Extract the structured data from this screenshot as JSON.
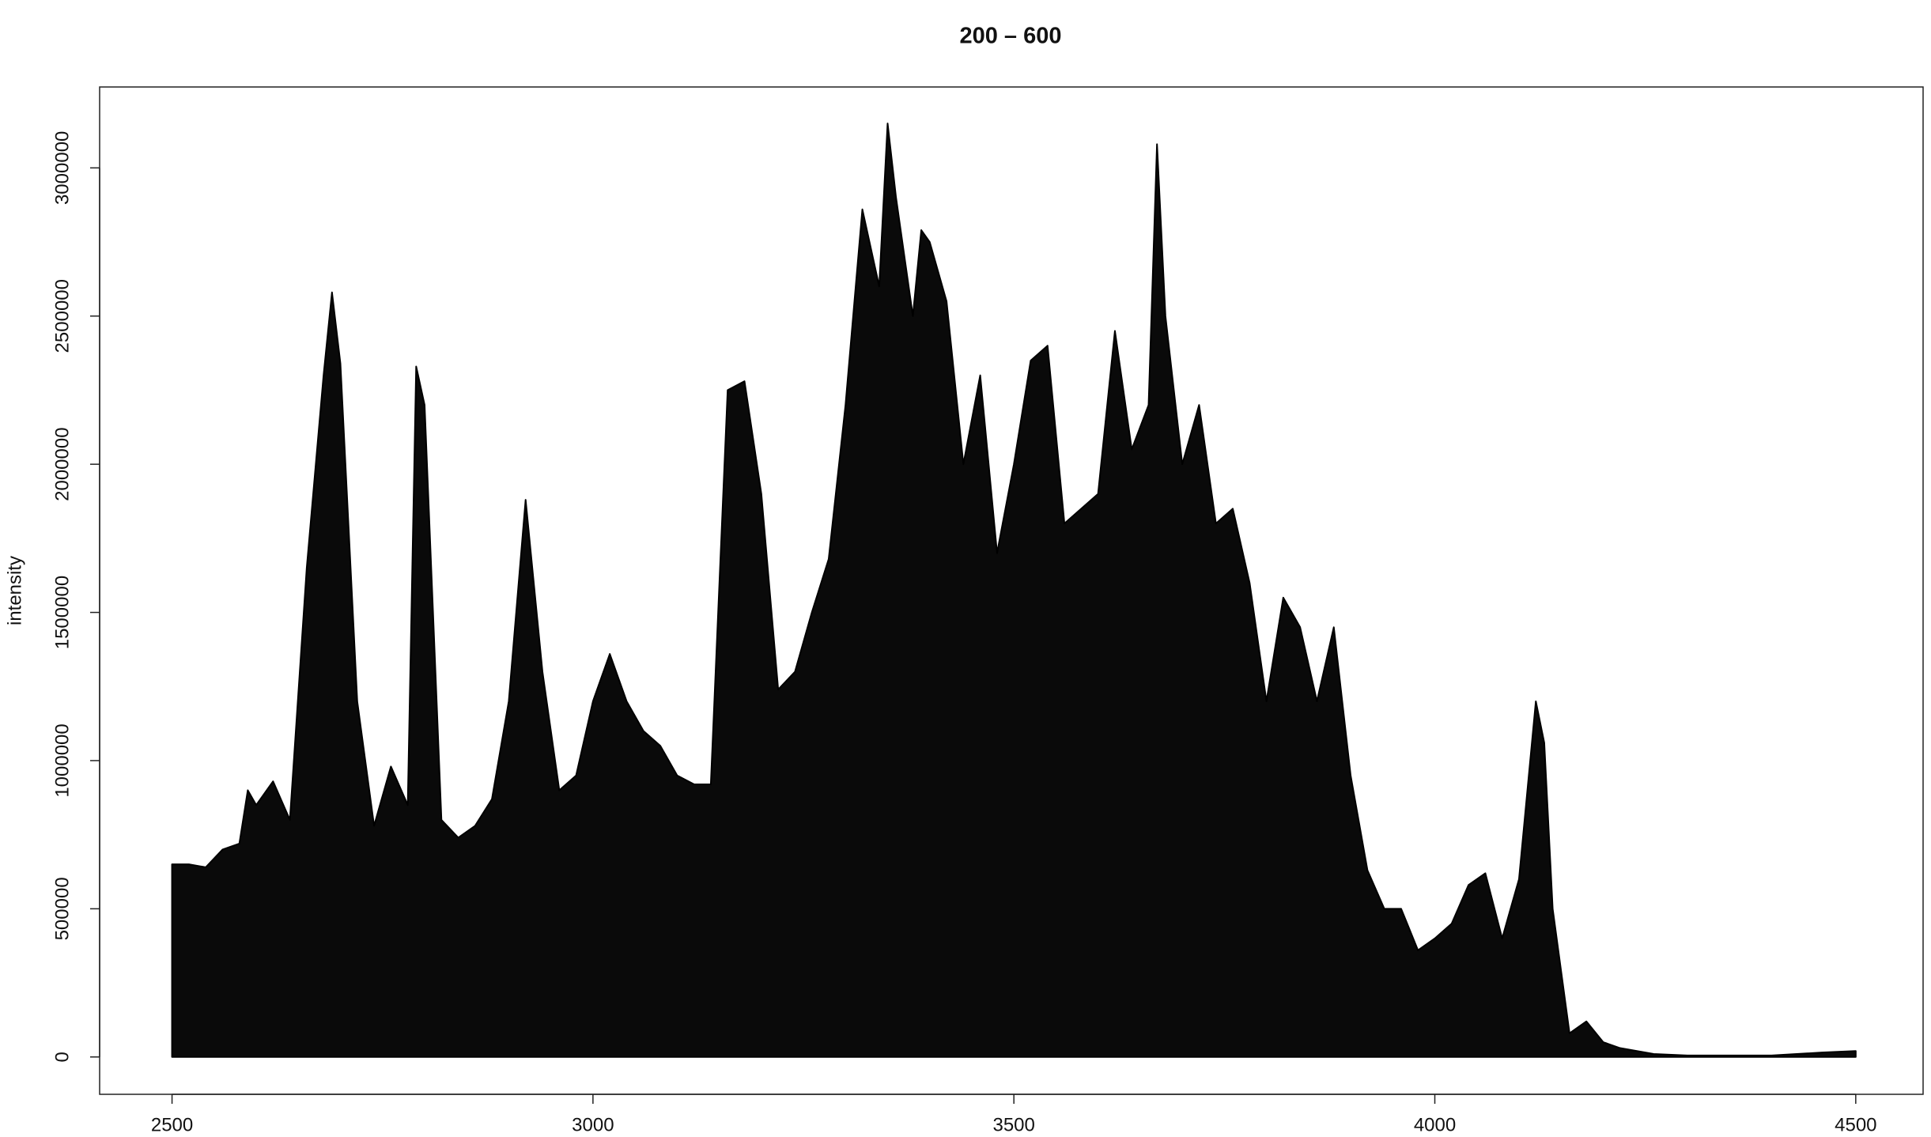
{
  "chart_data": {
    "type": "area",
    "title": "200 – 600",
    "ylabel": "intensity",
    "color": "#0a0a0a",
    "xlim": [
      2414,
      4580
    ],
    "ylim": [
      -126000,
      3273000
    ],
    "xticks": [
      2500,
      3000,
      3500,
      4000,
      4500
    ],
    "yticks": [
      0,
      500000,
      1000000,
      1500000,
      2000000,
      2500000,
      3000000
    ],
    "x": [
      2500,
      2520,
      2540,
      2560,
      2580,
      2590,
      2600,
      2620,
      2640,
      2660,
      2680,
      2690,
      2700,
      2720,
      2740,
      2760,
      2780,
      2790,
      2800,
      2820,
      2840,
      2860,
      2880,
      2900,
      2920,
      2940,
      2960,
      2980,
      3000,
      3020,
      3040,
      3060,
      3080,
      3100,
      3120,
      3140,
      3160,
      3180,
      3200,
      3220,
      3240,
      3260,
      3280,
      3300,
      3320,
      3340,
      3350,
      3360,
      3380,
      3390,
      3400,
      3420,
      3440,
      3460,
      3480,
      3500,
      3520,
      3540,
      3560,
      3580,
      3600,
      3620,
      3640,
      3660,
      3670,
      3680,
      3700,
      3720,
      3740,
      3760,
      3780,
      3800,
      3820,
      3840,
      3860,
      3880,
      3900,
      3920,
      3940,
      3960,
      3980,
      4000,
      4020,
      4040,
      4060,
      4080,
      4100,
      4120,
      4130,
      4140,
      4160,
      4180,
      4200,
      4220,
      4260,
      4300,
      4400,
      4460,
      4500
    ],
    "values": [
      650000,
      650000,
      640000,
      700000,
      720000,
      900000,
      850000,
      930000,
      800000,
      1650000,
      2300000,
      2580000,
      2340000,
      1200000,
      780000,
      980000,
      850000,
      2330000,
      2200000,
      800000,
      740000,
      780000,
      870000,
      1200000,
      1880000,
      1300000,
      900000,
      950000,
      1200000,
      1360000,
      1200000,
      1100000,
      1050000,
      950000,
      920000,
      920000,
      2250000,
      2280000,
      1900000,
      1240000,
      1300000,
      1500000,
      1680000,
      2200000,
      2860000,
      2600000,
      3150000,
      2900000,
      2500000,
      2790000,
      2750000,
      2550000,
      2000000,
      2300000,
      1700000,
      2000000,
      2350000,
      2400000,
      1800000,
      1850000,
      1900000,
      2450000,
      2050000,
      2200000,
      3080000,
      2500000,
      2000000,
      2200000,
      1800000,
      1850000,
      1600000,
      1200000,
      1550000,
      1450000,
      1200000,
      1450000,
      950000,
      630000,
      500000,
      500000,
      360000,
      400000,
      450000,
      580000,
      620000,
      400000,
      600000,
      1200000,
      1060000,
      500000,
      80000,
      120000,
      50000,
      30000,
      10000,
      5000,
      5000,
      15000,
      20000
    ]
  }
}
